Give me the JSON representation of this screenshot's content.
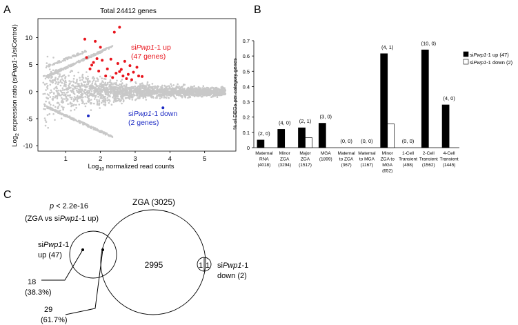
{
  "panels": {
    "a": "A",
    "b": "B",
    "c": "C"
  },
  "chart_data": [
    {
      "type": "scatter",
      "title": "Total 24412 genes",
      "xlabel_pre": "Log",
      "xlabel_sub": "10",
      "xlabel_post": " normalized read counts",
      "ylabel_pre": "Log",
      "ylabel_sub": "2",
      "ylabel_mid": " expression ratio (si",
      "ylabel_ital": "Pwp1",
      "ylabel_post": "-1/siControl)",
      "xlim": [
        0.2,
        5.9
      ],
      "ylim": [
        -11,
        13.5
      ],
      "xticks": [
        1,
        2,
        3,
        4,
        5
      ],
      "yticks": [
        -10,
        -5,
        0,
        5,
        10
      ],
      "up_label": {
        "pre": "si",
        "ital": "Pwp1",
        "post": "-1 up",
        "line2": "(47 genes)"
      },
      "down_label": {
        "pre": "si",
        "ital": "Pwp1",
        "post": "-1 down",
        "line2": "(2 genes)"
      },
      "colors": {
        "background": "#c8c8c8",
        "up": "#e8141c",
        "down": "#1d2bc4"
      },
      "up_points": [
        [
          2.55,
          11.9
        ],
        [
          2.4,
          11.0
        ],
        [
          1.55,
          9.7
        ],
        [
          1.85,
          9.3
        ],
        [
          2.0,
          8.2
        ],
        [
          1.6,
          6.3
        ],
        [
          1.8,
          5.4
        ],
        [
          1.9,
          6.1
        ],
        [
          1.75,
          4.9
        ],
        [
          2.05,
          5.8
        ],
        [
          2.2,
          4.2
        ],
        [
          2.3,
          6.0
        ],
        [
          2.5,
          5.2
        ],
        [
          2.6,
          4.1
        ],
        [
          2.7,
          5.6
        ],
        [
          2.85,
          4.8
        ],
        [
          2.95,
          3.6
        ],
        [
          3.05,
          4.5
        ],
        [
          2.8,
          3.2
        ],
        [
          3.1,
          2.9
        ],
        [
          2.45,
          3.4
        ],
        [
          1.95,
          3.8
        ],
        [
          2.15,
          2.9
        ],
        [
          2.75,
          2.4
        ],
        [
          2.35,
          2.6
        ],
        [
          1.7,
          4.2
        ],
        [
          2.65,
          2.9
        ],
        [
          2.9,
          2.2
        ],
        [
          3.2,
          2.8
        ],
        [
          2.55,
          3.7
        ]
      ],
      "down_points": [
        [
          1.65,
          -4.5
        ],
        [
          3.8,
          -3.0
        ]
      ]
    },
    {
      "type": "bar",
      "ylabel": "% of DEGs per category genes",
      "ylim": [
        0,
        0.7
      ],
      "yticks": [
        "0",
        "0.1",
        "0.2",
        "0.3",
        "0.4",
        "0.5",
        "0.6",
        "0.7"
      ],
      "categories": [
        {
          "lines": [
            "Maternal",
            "RNA",
            "(4018)"
          ],
          "count": "(2, 0)"
        },
        {
          "lines": [
            "Minor",
            "ZGA",
            "(3294)"
          ],
          "count": "(4, 0)"
        },
        {
          "lines": [
            "Major",
            "ZGA",
            "(1517)"
          ],
          "count": "(2, 1)"
        },
        {
          "lines": [
            "MGA",
            "(1899)"
          ],
          "count": "(3, 0)"
        },
        {
          "lines": [
            "Maternal",
            "to ZGA",
            "(367)"
          ],
          "count": "(0, 0)"
        },
        {
          "lines": [
            "Maternal",
            "to MGA",
            "(1167)"
          ],
          "count": "(0, 0)"
        },
        {
          "lines": [
            "Minor",
            "ZGA to",
            "MGA",
            "(652)"
          ],
          "count": "(4, 1)"
        },
        {
          "lines": [
            "1-Cell",
            "Transient",
            "(498)"
          ],
          "count": "(0, 0)"
        },
        {
          "lines": [
            "2-Cell",
            "Transient",
            "(1562)"
          ],
          "count": "(10, 0)"
        },
        {
          "lines": [
            "4-Cell",
            "Transient",
            "(1445)"
          ],
          "count": "(4, 0)"
        }
      ],
      "series": [
        {
          "name": "siPwp1-1 up (47)",
          "legend_pre": "si",
          "legend_ital": "Pwp1",
          "legend_post": "-1 up (47)",
          "fill": "#000000",
          "values": [
            0.05,
            0.12,
            0.13,
            0.16,
            0,
            0,
            0.615,
            0,
            0.64,
            0.28
          ]
        },
        {
          "name": "siPwp1-1 down (2)",
          "legend_pre": "si",
          "legend_ital": "Pwp1",
          "legend_post": "-1 down (2)",
          "fill": "#ffffff",
          "values": [
            0,
            0,
            0.065,
            0,
            0,
            0,
            0.155,
            0,
            0,
            0
          ]
        }
      ]
    },
    {
      "type": "venn",
      "pvalue_pre": "p",
      "pvalue_post": " < 2.2e-16",
      "pvalue_paren_pre": "(ZGA vs si",
      "pvalue_paren_ital": "Pwp1",
      "pvalue_paren_post": "-1 up)",
      "zga_label": "ZGA (3025)",
      "zga_only": "2995",
      "up_set": {
        "pre": "si",
        "ital": "Pwp1",
        "post": "-1",
        "line2": "up (47)"
      },
      "down_set": {
        "pre": "si",
        "ital": "Pwp1",
        "post": "-1",
        "line2": "down (2)"
      },
      "down_left": "1",
      "down_right": "1",
      "up_only": {
        "count": "18",
        "pct": "(38.3%)"
      },
      "overlap": {
        "count": "29",
        "pct": "(61.7%)"
      }
    }
  ]
}
